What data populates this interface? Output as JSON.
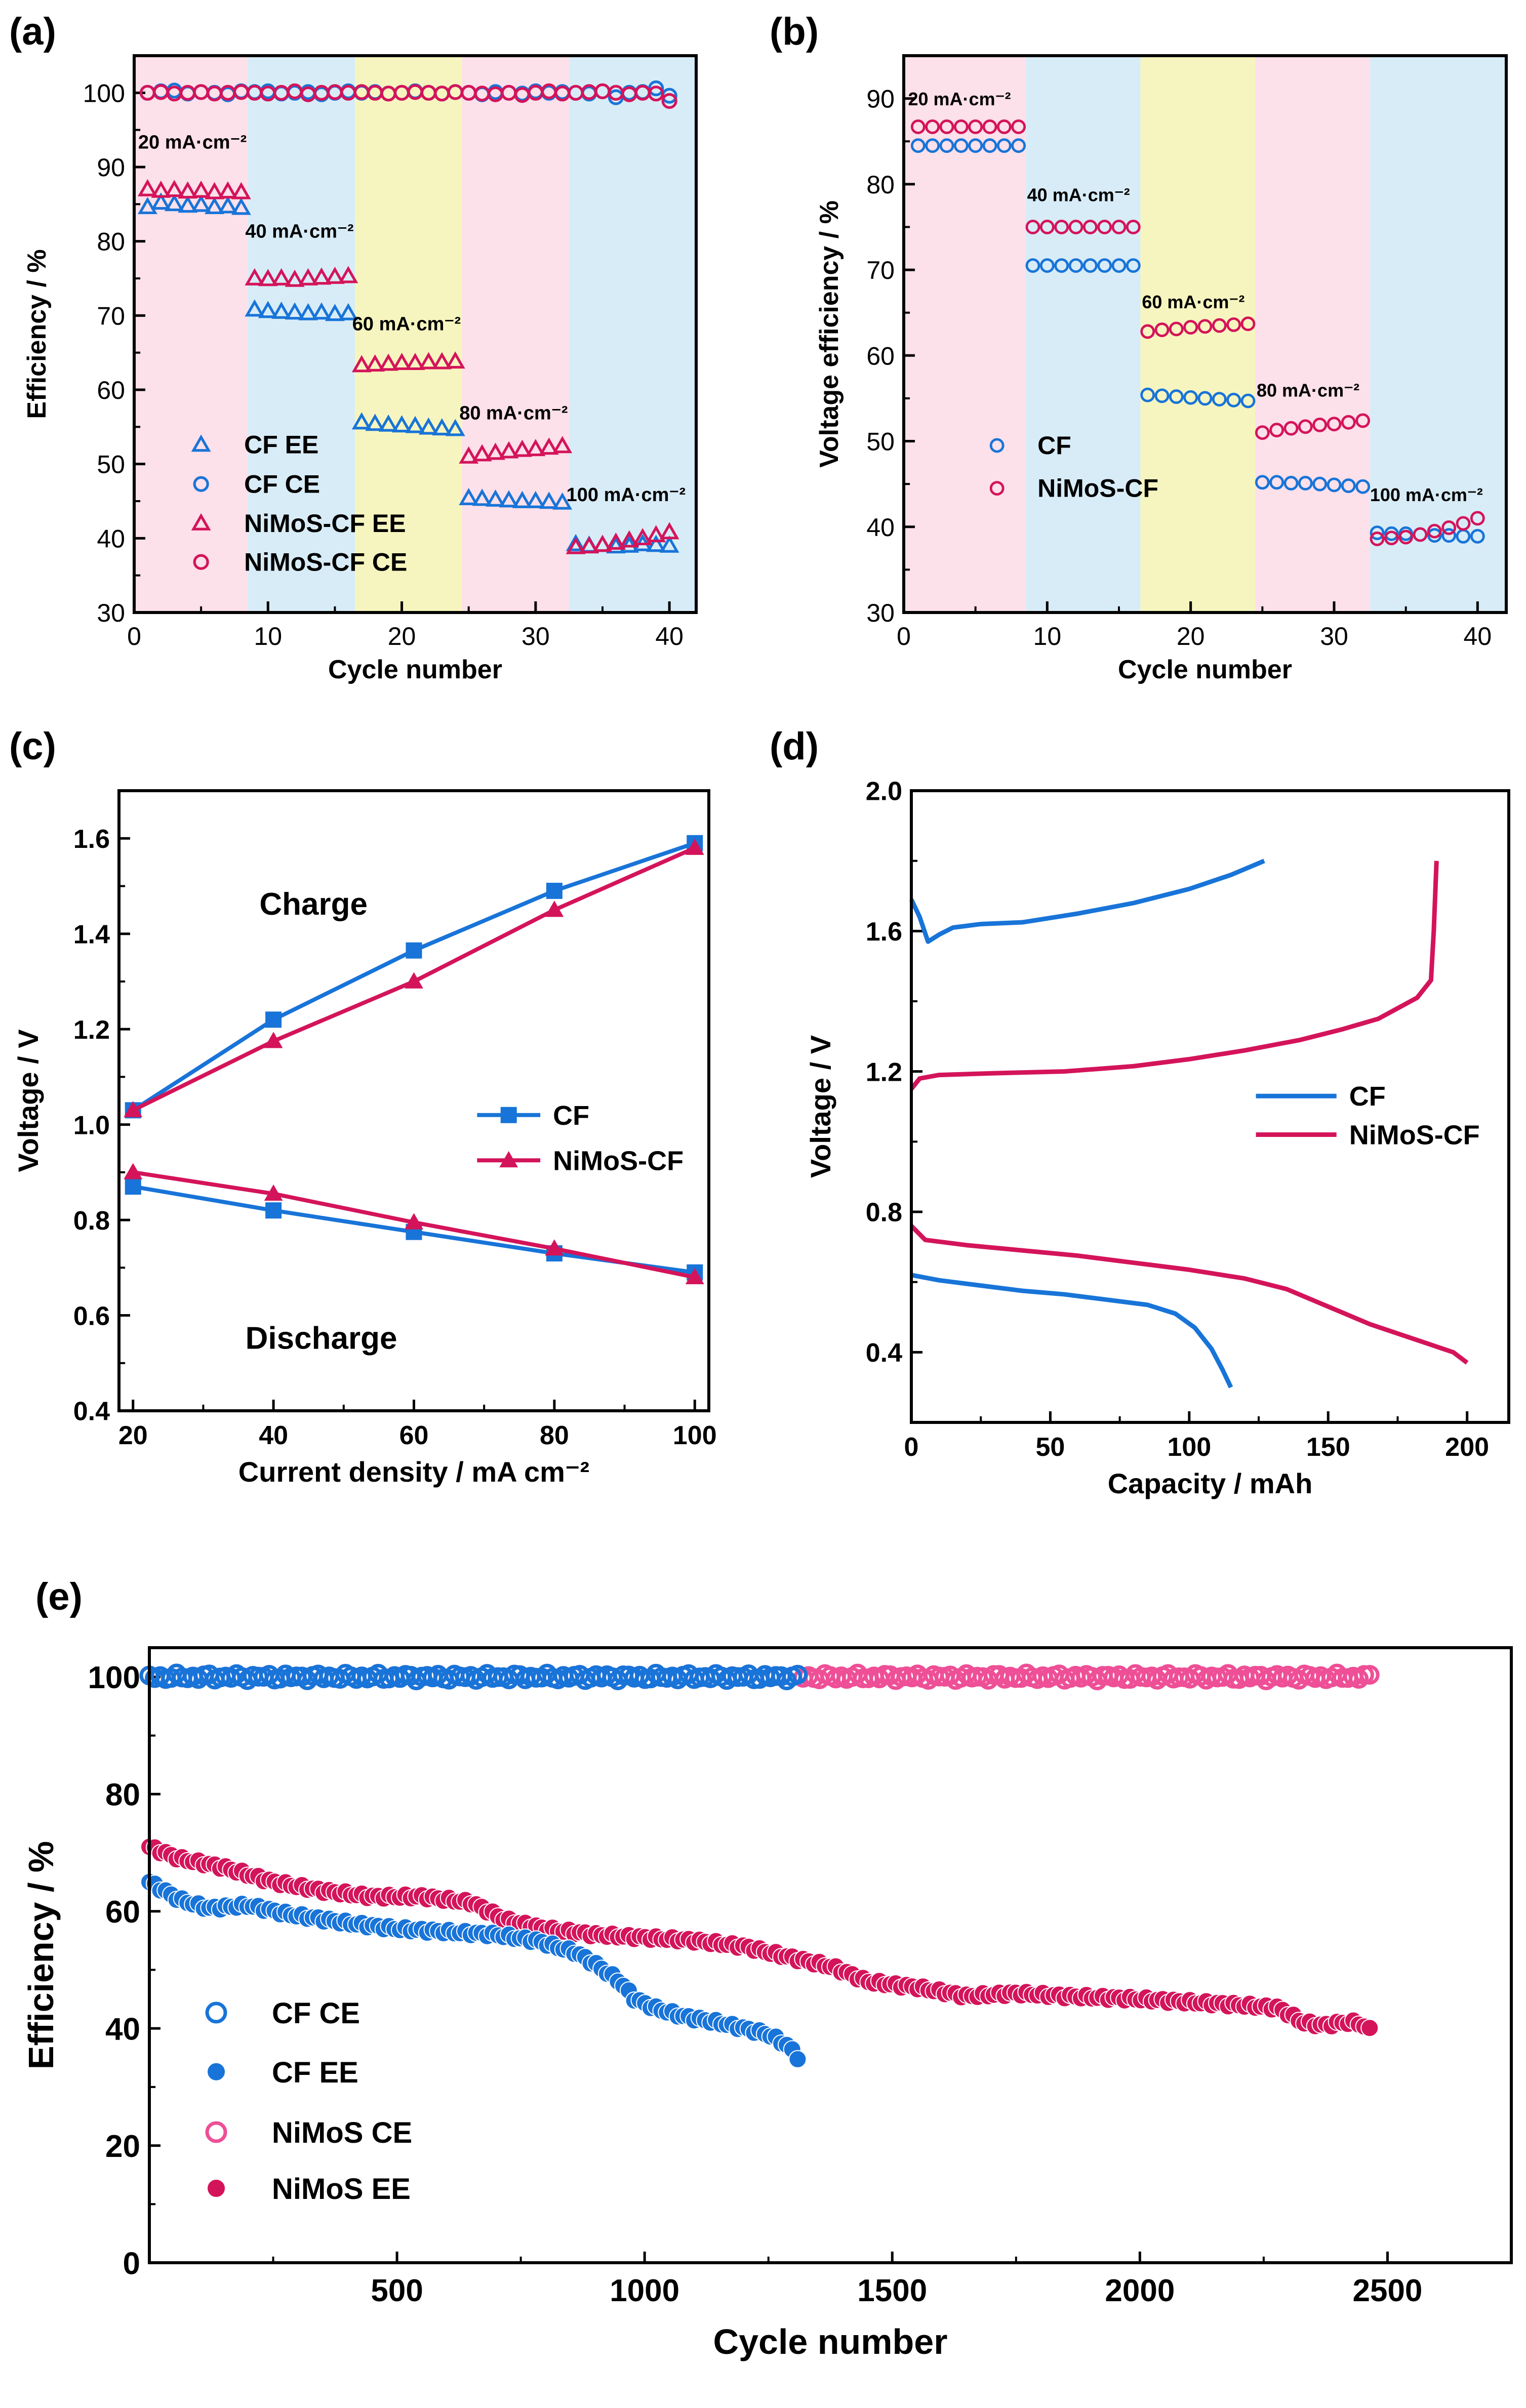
{
  "colors": {
    "blue": "#1874d8",
    "crimson": "#d4145a",
    "pink": "#ee4f96",
    "bg_pink": "#fce0ea",
    "bg_blue": "#d8ecf7",
    "bg_yellow": "#f7f5bf"
  },
  "chart_data": [
    {
      "panel": "(a)",
      "type": "scatter",
      "xlabel": "Cycle number",
      "ylabel": "Efficiency / %",
      "xlim": [
        0,
        42
      ],
      "ylim": [
        30,
        105
      ],
      "xticks": [
        0,
        10,
        20,
        30,
        40
      ],
      "yticks": [
        30,
        40,
        50,
        60,
        70,
        80,
        90,
        100
      ],
      "bands": [
        {
          "from": 0,
          "to": 8.5,
          "color": "bg_pink"
        },
        {
          "from": 8.5,
          "to": 16.5,
          "color": "bg_blue"
        },
        {
          "from": 16.5,
          "to": 24.5,
          "color": "bg_yellow"
        },
        {
          "from": 24.5,
          "to": 32.5,
          "color": "bg_pink"
        },
        {
          "from": 32.5,
          "to": 42,
          "color": "bg_blue"
        }
      ],
      "annotations": [
        {
          "text": "20 mA·cm⁻²",
          "x": 0.3,
          "y": 92.5
        },
        {
          "text": "40 mA·cm⁻²",
          "x": 8.3,
          "y": 80.5
        },
        {
          "text": "60 mA·cm⁻²",
          "x": 16.3,
          "y": 68.0
        },
        {
          "text": "80 mA·cm⁻²",
          "x": 24.3,
          "y": 56.0
        },
        {
          "text": "100 mA·cm⁻²",
          "x": 32.3,
          "y": 45.0
        }
      ],
      "series": [
        {
          "name": "CF EE",
          "marker": "triangle",
          "color": "blue",
          "y": [
            84.6,
            85.2,
            85.0,
            84.8,
            84.9,
            84.6,
            84.7,
            84.5,
            70.8,
            70.6,
            70.5,
            70.4,
            70.3,
            70.4,
            70.2,
            70.3,
            55.6,
            55.4,
            55.3,
            55.2,
            55.1,
            54.9,
            54.8,
            54.7,
            45.4,
            45.3,
            45.2,
            45.1,
            45.0,
            45.0,
            44.9,
            44.8,
            39.2,
            39.0,
            39.1,
            38.9,
            39.0,
            39.2,
            39.1,
            39.0
          ]
        },
        {
          "name": "CF CE",
          "marker": "circle",
          "color": "blue",
          "y": [
            100.0,
            100.2,
            100.3,
            99.9,
            100.1,
            100.0,
            99.8,
            100.2,
            100.1,
            100.2,
            99.9,
            100.0,
            100.1,
            99.8,
            100.0,
            100.2,
            100.0,
            100.1,
            99.9,
            100.0,
            100.2,
            100.0,
            99.9,
            100.1,
            100.0,
            99.8,
            100.1,
            100.0,
            99.9,
            100.2,
            100.0,
            100.1,
            100.0,
            99.9,
            100.2,
            99.4,
            100.0,
            100.1,
            100.6,
            99.6
          ]
        },
        {
          "name": "NiMoS-CF EE",
          "marker": "triangle",
          "color": "crimson",
          "y": [
            87.0,
            86.8,
            86.9,
            86.7,
            86.8,
            86.6,
            86.7,
            86.6,
            75.0,
            74.9,
            75.0,
            74.8,
            75.0,
            75.1,
            75.2,
            75.3,
            63.3,
            63.4,
            63.5,
            63.6,
            63.6,
            63.7,
            63.7,
            63.8,
            51.0,
            51.3,
            51.5,
            51.7,
            51.9,
            52.0,
            52.2,
            52.4,
            38.8,
            38.9,
            39.1,
            39.4,
            39.7,
            40.0,
            40.4,
            40.8
          ]
        },
        {
          "name": "NiMoS-CF CE",
          "marker": "circle",
          "color": "crimson",
          "y": [
            100.0,
            100.1,
            99.9,
            100.0,
            100.1,
            99.9,
            100.0,
            100.1,
            100.0,
            99.9,
            100.0,
            100.2,
            99.8,
            100.0,
            100.1,
            100.0,
            100.1,
            100.0,
            99.9,
            100.0,
            100.1,
            100.0,
            99.9,
            100.1,
            100.0,
            99.9,
            99.8,
            100.0,
            99.7,
            100.0,
            100.2,
            99.9,
            100.0,
            100.1,
            100.2,
            100.0,
            99.8,
            100.0,
            99.9,
            98.9
          ]
        }
      ]
    },
    {
      "panel": "(b)",
      "type": "scatter",
      "xlabel": "Cycle number",
      "ylabel": "Voltage efficiency / %",
      "xlim": [
        0,
        42
      ],
      "ylim": [
        30,
        95
      ],
      "xticks": [
        0,
        10,
        20,
        30,
        40
      ],
      "yticks": [
        30,
        40,
        50,
        60,
        70,
        80,
        90
      ],
      "bands": [
        {
          "from": 0,
          "to": 8.5,
          "color": "bg_pink"
        },
        {
          "from": 8.5,
          "to": 16.5,
          "color": "bg_blue"
        },
        {
          "from": 16.5,
          "to": 24.5,
          "color": "bg_yellow"
        },
        {
          "from": 24.5,
          "to": 32.5,
          "color": "bg_pink"
        },
        {
          "from": 32.5,
          "to": 42,
          "color": "bg_blue"
        }
      ],
      "annotations": [
        {
          "text": "20 mA·cm⁻²",
          "x": 0.3,
          "y": 89.2
        },
        {
          "text": "40 mA·cm⁻²",
          "x": 8.6,
          "y": 78.0
        },
        {
          "text": "60 mA·cm⁻²",
          "x": 16.6,
          "y": 65.5
        },
        {
          "text": "80 mA·cm⁻²",
          "x": 24.6,
          "y": 55.2
        },
        {
          "text": "100 mA·cm⁻²",
          "x": 32.5,
          "y": 43.0
        }
      ],
      "series": [
        {
          "name": "CF",
          "marker": "circle",
          "color": "blue",
          "y": [
            84.5,
            84.5,
            84.5,
            84.5,
            84.5,
            84.5,
            84.5,
            84.5,
            70.5,
            70.5,
            70.5,
            70.5,
            70.5,
            70.5,
            70.5,
            70.5,
            55.4,
            55.3,
            55.2,
            55.1,
            55.0,
            54.9,
            54.8,
            54.7,
            45.2,
            45.2,
            45.1,
            45.1,
            45.0,
            44.9,
            44.8,
            44.7,
            39.3,
            39.2,
            39.2,
            39.1,
            39.0,
            39.0,
            38.9,
            38.9
          ]
        },
        {
          "name": "NiMoS-CF",
          "marker": "circle",
          "color": "crimson",
          "y": [
            86.7,
            86.7,
            86.7,
            86.7,
            86.7,
            86.7,
            86.7,
            86.7,
            75.0,
            75.0,
            75.0,
            75.0,
            75.0,
            75.0,
            75.0,
            75.0,
            62.8,
            63.0,
            63.1,
            63.3,
            63.4,
            63.5,
            63.6,
            63.7,
            51.0,
            51.3,
            51.5,
            51.7,
            51.9,
            52.0,
            52.2,
            52.4,
            38.6,
            38.7,
            38.8,
            39.1,
            39.5,
            39.9,
            40.4,
            41.0
          ]
        }
      ]
    },
    {
      "panel": "(c)",
      "type": "line",
      "xlabel": "Current density / mA cm⁻²",
      "ylabel": "Voltage / V",
      "xlim": [
        18,
        102
      ],
      "ylim": [
        0.4,
        1.7
      ],
      "xticks": [
        20,
        40,
        60,
        80,
        100
      ],
      "yticks": [
        0.4,
        0.6,
        0.8,
        1.0,
        1.2,
        1.4,
        1.6
      ],
      "annotations": [
        {
          "text": "Charge",
          "x": 38,
          "y": 1.44
        },
        {
          "text": "Discharge",
          "x": 36,
          "y": 0.53
        }
      ],
      "x": [
        20,
        40,
        60,
        80,
        100
      ],
      "series": [
        {
          "name": "CF",
          "marker": "square",
          "color": "blue",
          "charge": [
            1.03,
            1.22,
            1.365,
            1.49,
            1.59
          ],
          "discharge": [
            0.87,
            0.82,
            0.775,
            0.73,
            0.69
          ]
        },
        {
          "name": "NiMoS-CF",
          "marker": "triangle",
          "color": "crimson",
          "charge": [
            1.03,
            1.175,
            1.3,
            1.45,
            1.58
          ],
          "discharge": [
            0.9,
            0.855,
            0.795,
            0.74,
            0.68
          ]
        }
      ]
    },
    {
      "panel": "(d)",
      "type": "line",
      "xlabel": "Capacity / mAh",
      "ylabel": "Voltage / V",
      "xlim": [
        0,
        215
      ],
      "ylim": [
        0.2,
        2.0
      ],
      "xticks": [
        0,
        50,
        100,
        150,
        200
      ],
      "yticks": [
        0.4,
        0.8,
        1.2,
        1.6,
        2.0
      ],
      "series": [
        {
          "name": "CF",
          "color": "blue",
          "charge": [
            [
              0,
              1.69
            ],
            [
              3,
              1.64
            ],
            [
              6,
              1.57
            ],
            [
              10,
              1.59
            ],
            [
              15,
              1.61
            ],
            [
              25,
              1.62
            ],
            [
              40,
              1.625
            ],
            [
              60,
              1.65
            ],
            [
              80,
              1.68
            ],
            [
              100,
              1.72
            ],
            [
              115,
              1.76
            ],
            [
              127,
              1.8
            ]
          ],
          "discharge": [
            [
              0,
              0.62
            ],
            [
              10,
              0.605
            ],
            [
              25,
              0.59
            ],
            [
              40,
              0.575
            ],
            [
              55,
              0.565
            ],
            [
              70,
              0.55
            ],
            [
              85,
              0.535
            ],
            [
              95,
              0.51
            ],
            [
              102,
              0.47
            ],
            [
              108,
              0.41
            ],
            [
              112,
              0.35
            ],
            [
              115,
              0.3
            ]
          ]
        },
        {
          "name": "NiMoS-CF",
          "color": "crimson",
          "charge": [
            [
              0,
              1.15
            ],
            [
              3,
              1.18
            ],
            [
              10,
              1.19
            ],
            [
              30,
              1.195
            ],
            [
              55,
              1.2
            ],
            [
              80,
              1.215
            ],
            [
              100,
              1.235
            ],
            [
              120,
              1.26
            ],
            [
              140,
              1.29
            ],
            [
              155,
              1.32
            ],
            [
              168,
              1.35
            ],
            [
              175,
              1.38
            ],
            [
              182,
              1.41
            ],
            [
              187,
              1.46
            ],
            [
              188,
              1.6
            ],
            [
              189,
              1.8
            ]
          ],
          "discharge": [
            [
              0,
              0.76
            ],
            [
              5,
              0.72
            ],
            [
              20,
              0.705
            ],
            [
              40,
              0.69
            ],
            [
              60,
              0.675
            ],
            [
              80,
              0.655
            ],
            [
              100,
              0.635
            ],
            [
              120,
              0.61
            ],
            [
              135,
              0.58
            ],
            [
              150,
              0.53
            ],
            [
              165,
              0.48
            ],
            [
              180,
              0.44
            ],
            [
              195,
              0.4
            ],
            [
              200,
              0.37
            ]
          ]
        }
      ]
    },
    {
      "panel": "(e)",
      "type": "scatter",
      "xlabel": "Cycle number",
      "ylabel": "Efficiency / %",
      "xlim": [
        0,
        2750
      ],
      "ylim": [
        0,
        105
      ],
      "xticks": [
        500,
        1000,
        1500,
        2000,
        2500
      ],
      "yticks": [
        0,
        20,
        40,
        60,
        80,
        100
      ],
      "series": [
        {
          "name": "CF CE",
          "marker": "open-circle",
          "color": "blue",
          "x_end": 1310,
          "points": [
            [
              0,
              100
            ],
            [
              1310,
              100
            ]
          ]
        },
        {
          "name": "CF EE",
          "marker": "filled-circle",
          "color": "blue",
          "x_end": 1310,
          "points": [
            [
              0,
              65
            ],
            [
              60,
              62
            ],
            [
              120,
              60.5
            ],
            [
              200,
              61
            ],
            [
              280,
              59.5
            ],
            [
              400,
              58
            ],
            [
              500,
              57
            ],
            [
              600,
              56.5
            ],
            [
              700,
              56
            ],
            [
              780,
              55
            ],
            [
              860,
              53
            ],
            [
              900,
              51
            ],
            [
              950,
              48
            ],
            [
              980,
              45
            ],
            [
              1020,
              43.5
            ],
            [
              1080,
              42
            ],
            [
              1150,
              41
            ],
            [
              1200,
              40
            ],
            [
              1250,
              39
            ],
            [
              1290,
              37
            ],
            [
              1310,
              35
            ]
          ]
        },
        {
          "name": "NiMoS CE",
          "marker": "open-circle",
          "color": "pink",
          "x_end": 2470,
          "points": [
            [
              0,
              100
            ],
            [
              2470,
              100
            ]
          ]
        },
        {
          "name": "NiMoS EE",
          "marker": "filled-circle",
          "color": "crimson",
          "x_end": 2470,
          "points": [
            [
              0,
              71
            ],
            [
              60,
              69
            ],
            [
              150,
              67.5
            ],
            [
              250,
              65
            ],
            [
              350,
              63.5
            ],
            [
              450,
              62.5
            ],
            [
              550,
              62.5
            ],
            [
              650,
              61.5
            ],
            [
              720,
              58.5
            ],
            [
              800,
              57
            ],
            [
              900,
              56
            ],
            [
              1000,
              55.5
            ],
            [
              1100,
              55
            ],
            [
              1200,
              54
            ],
            [
              1300,
              52
            ],
            [
              1380,
              50.5
            ],
            [
              1450,
              48
            ],
            [
              1550,
              47
            ],
            [
              1650,
              45.5
            ],
            [
              1750,
              46
            ],
            [
              1850,
              45.5
            ],
            [
              2000,
              45
            ],
            [
              2100,
              44.5
            ],
            [
              2200,
              44
            ],
            [
              2280,
              43.5
            ],
            [
              2330,
              41
            ],
            [
              2370,
              40.5
            ],
            [
              2410,
              41
            ],
            [
              2440,
              41
            ],
            [
              2470,
              39.5
            ]
          ]
        }
      ]
    }
  ]
}
